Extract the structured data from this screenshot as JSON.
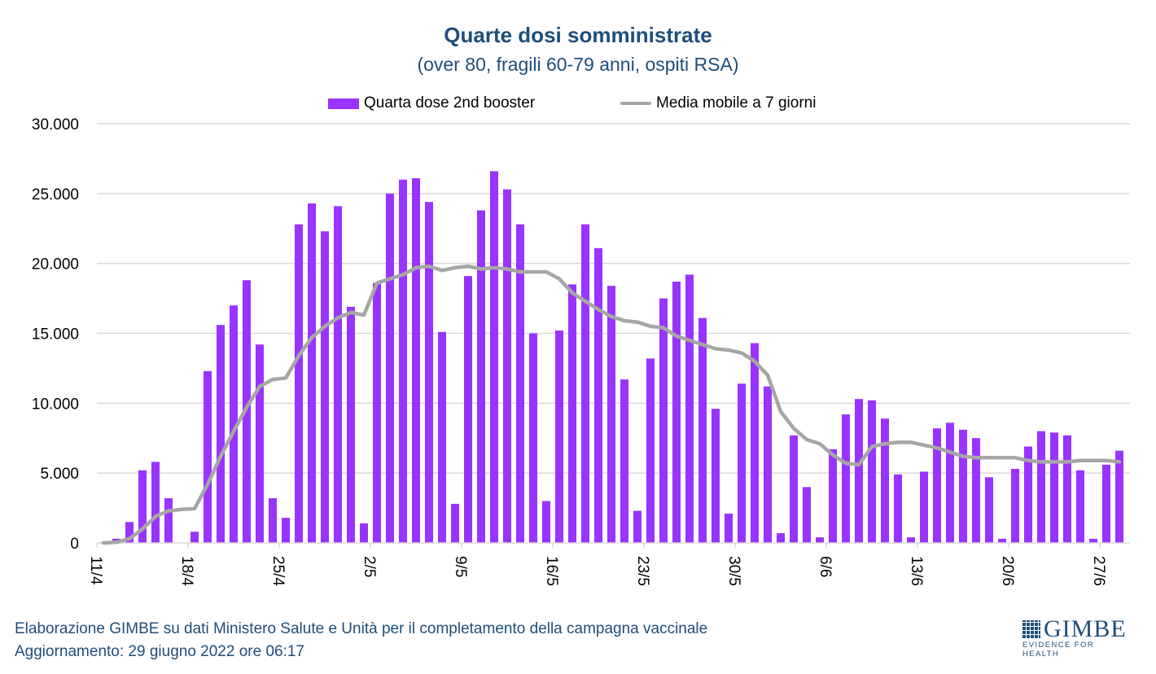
{
  "chart_data": {
    "type": "bar",
    "title": "Quarte dosi somministrate",
    "subtitle": "(over 80, fragili 60-79 anni, ospiti RSA)",
    "xlabel": "",
    "ylabel": "",
    "ylim": [
      0,
      30000
    ],
    "y_ticks": [
      "0",
      "5.000",
      "10.000",
      "15.000",
      "20.000",
      "25.000",
      "30.000"
    ],
    "y_tick_values": [
      0,
      5000,
      10000,
      15000,
      20000,
      25000,
      30000
    ],
    "grid": true,
    "legend_position": "top",
    "x_tick_labels": [
      "11/4",
      "18/4",
      "25/4",
      "2/5",
      "9/5",
      "16/5",
      "23/5",
      "30/5",
      "6/6",
      "13/6",
      "20/6",
      "27/6"
    ],
    "categories": [
      "11/4",
      "12/4",
      "13/4",
      "14/4",
      "15/4",
      "16/4",
      "17/4",
      "18/4",
      "19/4",
      "20/4",
      "21/4",
      "22/4",
      "23/4",
      "24/4",
      "25/4",
      "26/4",
      "27/4",
      "28/4",
      "29/4",
      "30/4",
      "1/5",
      "2/5",
      "3/5",
      "4/5",
      "5/5",
      "6/5",
      "7/5",
      "8/5",
      "9/5",
      "10/5",
      "11/5",
      "12/5",
      "13/5",
      "14/5",
      "15/5",
      "16/5",
      "17/5",
      "18/5",
      "19/5",
      "20/5",
      "21/5",
      "22/5",
      "23/5",
      "24/5",
      "25/5",
      "26/5",
      "27/5",
      "28/5",
      "29/5",
      "30/5",
      "31/5",
      "1/6",
      "2/6",
      "3/6",
      "4/6",
      "5/6",
      "6/6",
      "7/6",
      "8/6",
      "9/6",
      "10/6",
      "11/6",
      "12/6",
      "13/6",
      "14/6",
      "15/6",
      "16/6",
      "17/6",
      "18/6",
      "19/6",
      "20/6",
      "21/6",
      "22/6",
      "23/6",
      "24/6",
      "25/6",
      "26/6",
      "27/6",
      "28/6"
    ],
    "series": [
      {
        "name": "Quarta dose 2nd booster",
        "type": "bar",
        "color": "#9933ff",
        "values": [
          50,
          300,
          1500,
          5200,
          5800,
          3200,
          0,
          800,
          12300,
          15600,
          17000,
          18800,
          14200,
          3200,
          1800,
          22800,
          24300,
          22300,
          24100,
          16900,
          1400,
          18600,
          25000,
          26000,
          26100,
          24400,
          15100,
          2800,
          19100,
          23800,
          26600,
          25300,
          22800,
          15000,
          3000,
          15200,
          18500,
          22800,
          21100,
          18400,
          11700,
          2300,
          13200,
          17500,
          18700,
          19200,
          16100,
          9600,
          2100,
          11400,
          14300,
          11200,
          700,
          7700,
          4000,
          400,
          6700,
          9200,
          10300,
          10200,
          8900,
          4900,
          400,
          5100,
          8200,
          8600,
          8100,
          7500,
          4700,
          300,
          5300,
          6900,
          8000,
          7900,
          7700,
          5200,
          300,
          5600,
          6600
        ]
      },
      {
        "name": "Media mobile a 7 giorni",
        "type": "line",
        "color": "#a6a6a6",
        "values": [
          0,
          50,
          300,
          1000,
          1900,
          2300,
          2400,
          2450,
          4200,
          6200,
          8000,
          9700,
          11200,
          11700,
          11800,
          13400,
          14700,
          15500,
          16100,
          16500,
          16300,
          18600,
          18900,
          19200,
          19700,
          19800,
          19500,
          19700,
          19800,
          19600,
          19700,
          19600,
          19400,
          19400,
          19400,
          18900,
          17900,
          17300,
          16700,
          16200,
          15900,
          15800,
          15500,
          15400,
          14800,
          14500,
          14200,
          13900,
          13800,
          13600,
          13000,
          12000,
          9400,
          8200,
          7400,
          7100,
          6300,
          5700,
          5600,
          6900,
          7100,
          7200,
          7200,
          7000,
          6800,
          6500,
          6200,
          6100,
          6100,
          6100,
          6100,
          5900,
          5800,
          5800,
          5800,
          5900,
          5900,
          5900,
          5800
        ]
      }
    ]
  },
  "footer": {
    "line1": "Elaborazione GIMBE su dati Ministero Salute e Unità per il completamento della campagna vaccinale",
    "line2": "Aggiornamento: 29 giugno 2022 ore 06:17"
  },
  "logo": {
    "name": "GIMBE",
    "tagline": "EVIDENCE FOR HEALTH"
  }
}
